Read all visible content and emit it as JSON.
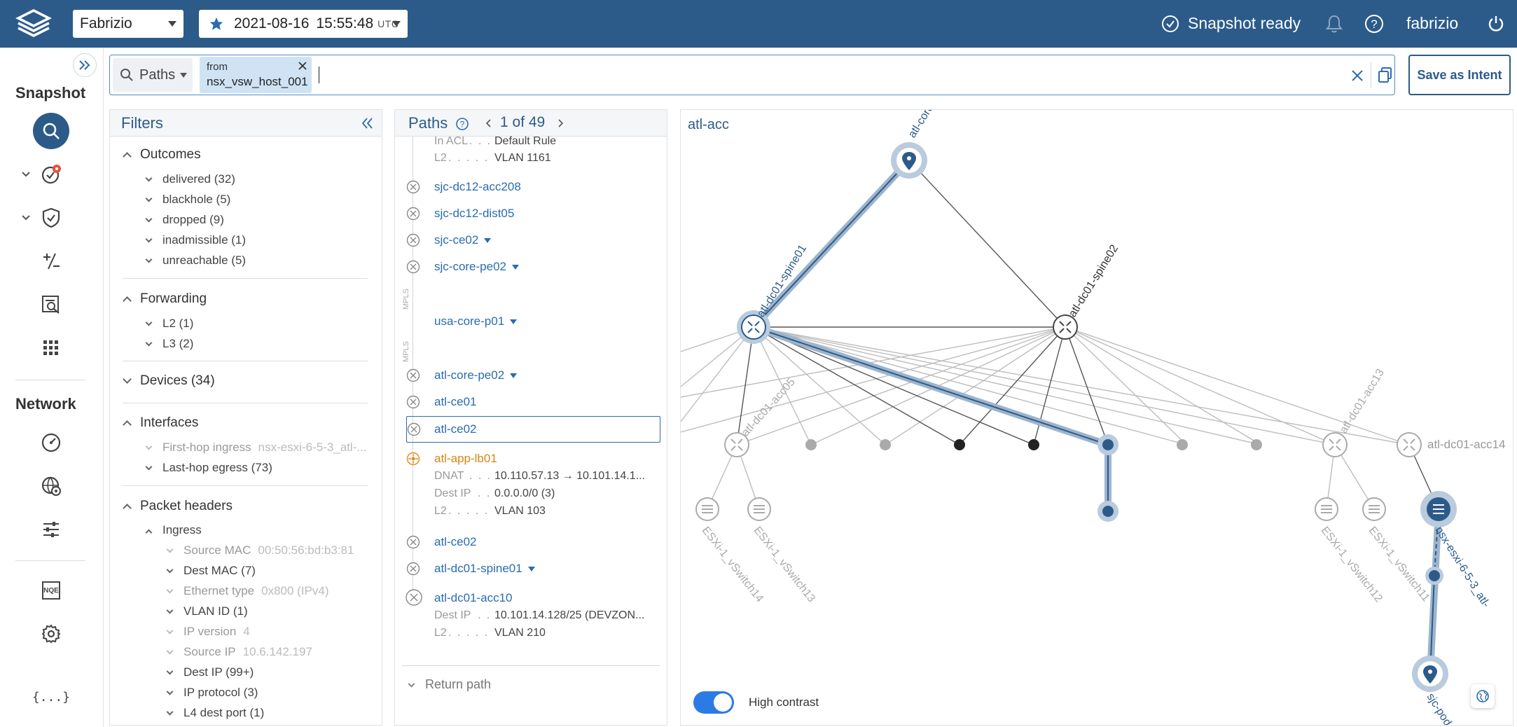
{
  "header": {
    "network_name": "Fabrizio",
    "snapshot_date": "2021-08-16",
    "snapshot_time": "15:55:48",
    "snapshot_tz": "UTC",
    "status": "Snapshot ready",
    "user": "fabrizio"
  },
  "sidebar": {
    "snapshot_label": "Snapshot",
    "network_label": "Network",
    "snapshot_icons": [
      "search-icon",
      "checks-icon",
      "shield-check-icon",
      "diff-icon",
      "search-doc-icon",
      "apps-grid-icon"
    ],
    "network_icons": [
      "dashboard-icon",
      "settings-globe-icon",
      "sliders-icon",
      "nqe-icon",
      "gear-icon",
      "json-icon"
    ],
    "nqe_label": "NQE",
    "json_label": "{...}"
  },
  "search": {
    "mode_label": "Paths",
    "chip_key": "from",
    "chip_value": "nsx_vsw_host_001",
    "save_label": "Save as Intent"
  },
  "filters": {
    "title": "Filters",
    "outcomes": {
      "label": "Outcomes",
      "items": [
        "delivered (32)",
        "blackhole (5)",
        "dropped (9)",
        "inadmissible (1)",
        "unreachable (5)"
      ]
    },
    "forwarding": {
      "label": "Forwarding",
      "items": [
        "L2 (1)",
        "L3 (2)"
      ]
    },
    "devices_label": "Devices (34)",
    "interfaces": {
      "label": "Interfaces",
      "first_hop_key": "First-hop ingress",
      "first_hop_val": "nsx-esxi-6-5-3_atl-...",
      "last_hop": "Last-hop egress (73)"
    },
    "packet_headers": {
      "label": "Packet headers",
      "ingress_label": "Ingress",
      "source_mac_key": "Source MAC",
      "source_mac_val": "00:50:56:bd:b3:81",
      "dest_mac": "Dest MAC (7)",
      "eth_type_key": "Ethernet type",
      "eth_type_val": "0x800  (IPv4)",
      "vlan_id": "VLAN ID (1)",
      "ip_version_key": "IP version",
      "ip_version_val": "4",
      "source_ip_key": "Source IP",
      "source_ip_val": "10.6.142.197",
      "dest_ip": "Dest IP (99+)",
      "ip_protocol": "IP protocol (3)",
      "l4_dest_port": "L4 dest port (1)"
    }
  },
  "paths": {
    "title": "Paths",
    "counter": "1 of 49",
    "top_meta": [
      {
        "k": "In ACL",
        "v": "Default Rule"
      },
      {
        "k": "L2",
        "v": "VLAN 1161"
      }
    ],
    "hops": {
      "h1": "sjc-dc12-acc208",
      "h2": "sjc-dc12-dist05",
      "h3": "sjc-ce02",
      "h4": "sjc-core-pe02",
      "h5": "usa-core-p01",
      "h6": "atl-core-pe02",
      "h7": "atl-ce01",
      "h8": "atl-ce02",
      "h9": "atl-app-lb01",
      "h10": "atl-ce02",
      "h11": "atl-dc01-spine01",
      "h12": "atl-dc01-acc10"
    },
    "mpls": "MPLS",
    "lb_meta": [
      {
        "k": "DNAT",
        "v": "10.110.57.13 → 10.101.14.1..."
      },
      {
        "k": "Dest IP",
        "v": "0.0.0.0/0 (3)"
      },
      {
        "k": "L2",
        "v": "VLAN 103"
      }
    ],
    "acc_meta": [
      {
        "k": "Dest IP",
        "v": "10.101.14.128/25 (DEVZON..."
      },
      {
        "k": "L2",
        "v": "VLAN 210"
      }
    ],
    "return_label": "Return path"
  },
  "graph": {
    "title": "atl-acc",
    "labels": {
      "core": "atl-core",
      "spine01": "atl-dc01-spine01",
      "spine02": "atl-dc01-spine02",
      "acc05": "atl-dc01-acc05",
      "acc13": "atl-dc01-acc13",
      "acc14": "atl-dc01-acc14",
      "vs14": "ESXi-1_vSwitch14",
      "vs13": "ESXi-1_vSwitch13",
      "vs12": "ESXi-1_vSwitch12",
      "vs11": "ESXi-1_vSwitch11",
      "nsx": "nsx-esxi-6-5-3_atl-",
      "sjc": "sjc-pod-"
    },
    "high_contrast_label": "High contrast",
    "high_contrast_on": true,
    "accent": "#2c5b8a"
  }
}
